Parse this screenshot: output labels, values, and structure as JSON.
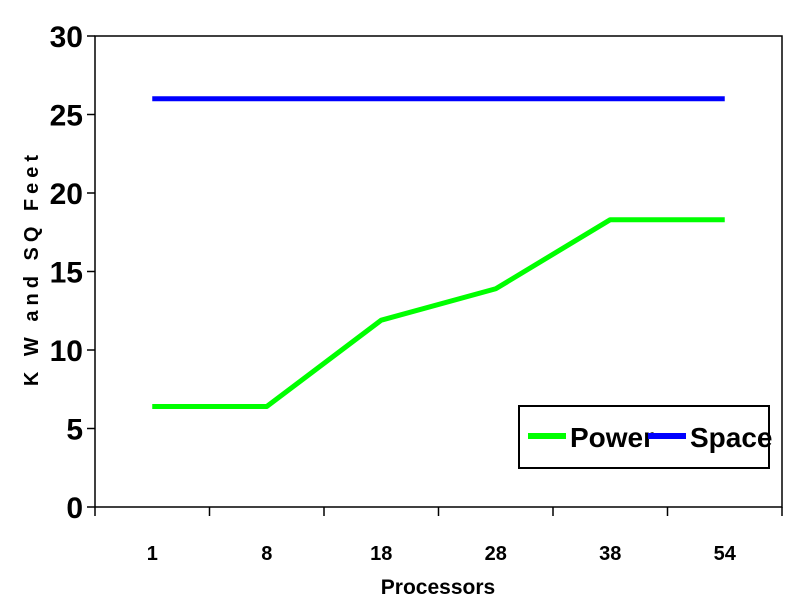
{
  "chart_data": {
    "type": "line",
    "title": "",
    "xlabel": "Processors",
    "ylabel": "K W and SQ Feet",
    "categories": [
      "1",
      "8",
      "18",
      "28",
      "38",
      "54"
    ],
    "series": [
      {
        "name": "Power",
        "color": "#00ff00",
        "values": [
          6.4,
          6.4,
          11.9,
          13.9,
          18.3,
          18.3
        ]
      },
      {
        "name": "Space",
        "color": "#0000ff",
        "values": [
          26,
          26,
          26,
          26,
          26,
          26
        ]
      }
    ],
    "ylim": [
      0,
      30
    ],
    "yticks": [
      0,
      5,
      10,
      15,
      20,
      25,
      30
    ],
    "grid": false,
    "legend_position": "bottom-right"
  }
}
